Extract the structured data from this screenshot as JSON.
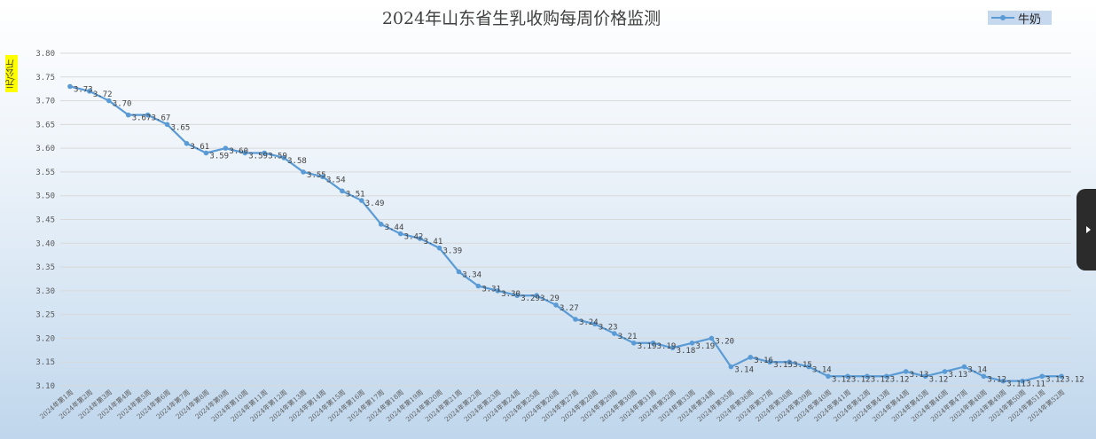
{
  "chart_data": {
    "type": "line",
    "title": "2024年山东省生乳收购每周价格监测",
    "ylabel": "元/公斤",
    "xlabel": "",
    "ylim": [
      3.1,
      3.8
    ],
    "yticks": [
      "3.80",
      "3.75",
      "3.70",
      "3.65",
      "3.60",
      "3.55",
      "3.50",
      "3.45",
      "3.40",
      "3.35",
      "3.30",
      "3.25",
      "3.20",
      "3.15",
      "3.10"
    ],
    "grid": true,
    "legend_position": "top-right",
    "categories": [
      "2024年第1周",
      "2024年第2周",
      "2024年第3周",
      "2024年第4周",
      "2024年第5周",
      "2024年第6周",
      "2024年第7周",
      "2024年第8周",
      "2024年第9周",
      "2024年第10周",
      "2024年第11周",
      "2024年第12周",
      "2024年第13周",
      "2024年第14周",
      "2024年第15周",
      "2024年第16周",
      "2024年第17周",
      "2024年第18周",
      "2024年第19周",
      "2024年第20周",
      "2024年第21周",
      "2024年第22周",
      "2024年第23周",
      "2024年第24周",
      "2024年第25周",
      "2024年第26周",
      "2024年第27周",
      "2024年第28周",
      "2024年第29周",
      "2024年第30周",
      "2024年第31周",
      "2024年第32周",
      "2024年第33周",
      "2024年第34周",
      "2024年第35周",
      "2024年第36周",
      "2024年第37周",
      "2024年第38周",
      "2024年第39周",
      "2024年第40周",
      "2024年第41周",
      "2024年第42周",
      "2024年第43周",
      "2024年第44周",
      "2024年第45周",
      "2024年第46周",
      "2024年第47周",
      "2024年第48周",
      "2024年第49周",
      "2024年第50周",
      "2024年第51周",
      "2024年第52周"
    ],
    "series": [
      {
        "name": "牛奶",
        "color": "#5b9bd5",
        "values": [
          3.73,
          3.72,
          3.7,
          3.67,
          3.67,
          3.65,
          3.61,
          3.59,
          3.6,
          3.59,
          3.59,
          3.58,
          3.55,
          3.54,
          3.51,
          3.49,
          3.44,
          3.42,
          3.41,
          3.39,
          3.34,
          3.31,
          3.3,
          3.29,
          3.29,
          3.27,
          3.24,
          3.23,
          3.21,
          3.19,
          3.19,
          3.18,
          3.19,
          3.2,
          3.14,
          3.16,
          3.15,
          3.15,
          3.14,
          3.12,
          3.12,
          3.12,
          3.12,
          3.13,
          3.12,
          3.13,
          3.14,
          3.12,
          3.11,
          3.11,
          3.12,
          3.12
        ]
      }
    ]
  },
  "ui": {
    "legend_label": "牛奶",
    "unit_label": "元/公斤",
    "side_toggle_icon": "chevron-right-icon"
  }
}
